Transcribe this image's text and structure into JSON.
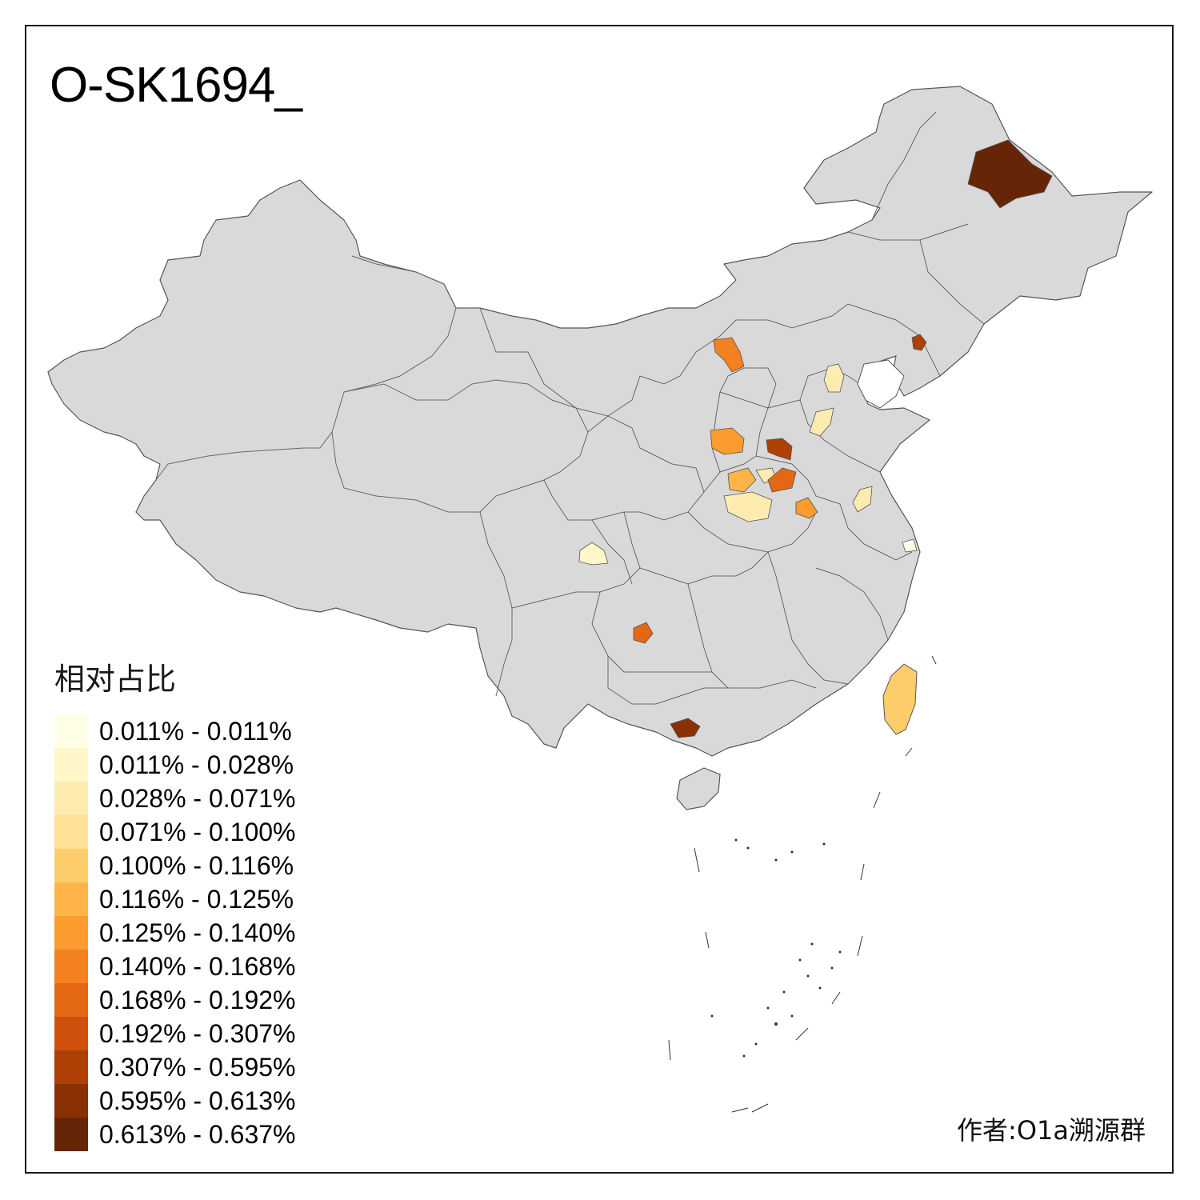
{
  "map": {
    "title": "O-SK1694_",
    "credit": "作者:O1a溯源群"
  },
  "legend": {
    "title": "相对占比",
    "items": [
      {
        "label": "0.011% - 0.011%",
        "color": "#FFFFE5"
      },
      {
        "label": "0.011% - 0.028%",
        "color": "#FFF7C9"
      },
      {
        "label": "0.028% - 0.071%",
        "color": "#FEEBB0"
      },
      {
        "label": "0.071% - 0.100%",
        "color": "#FEE196"
      },
      {
        "label": "0.100% - 0.116%",
        "color": "#FECD6B"
      },
      {
        "label": "0.116% - 0.125%",
        "color": "#FEB448"
      },
      {
        "label": "0.125% - 0.140%",
        "color": "#FC9B2E"
      },
      {
        "label": "0.140% - 0.168%",
        "color": "#F3811F"
      },
      {
        "label": "0.168% - 0.192%",
        "color": "#E46714"
      },
      {
        "label": "0.192% - 0.307%",
        "color": "#CF510B"
      },
      {
        "label": "0.307% - 0.595%",
        "color": "#AE3F05"
      },
      {
        "label": "0.595% - 0.613%",
        "color": "#8A3104"
      },
      {
        "label": "0.613% - 0.637%",
        "color": "#662506"
      }
    ]
  },
  "colors": {
    "land": "#D9D9D9",
    "border": "#555555",
    "background": "#FFFFFF"
  }
}
